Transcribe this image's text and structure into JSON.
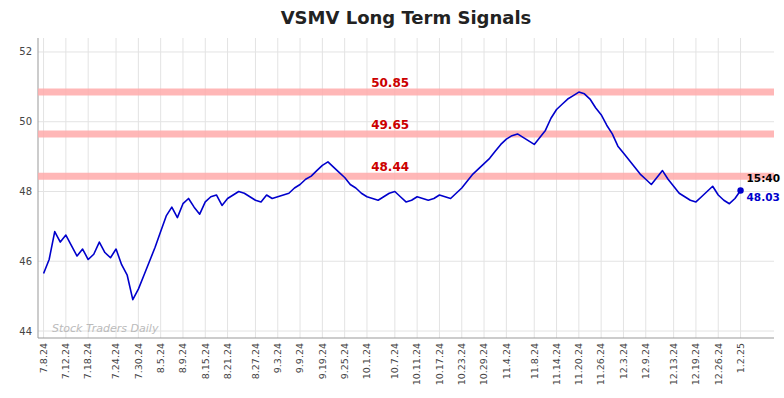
{
  "chart_data": {
    "type": "line",
    "title": "VSMV Long Term Signals",
    "categories": [
      "7.8.24",
      null,
      null,
      null,
      "7.12.24",
      null,
      null,
      null,
      "7.18.24",
      null,
      null,
      null,
      null,
      "7.24.24",
      null,
      null,
      null,
      "7.30.24",
      null,
      null,
      null,
      "8.5.24",
      null,
      null,
      null,
      "8.9.24",
      null,
      null,
      null,
      "8.15.24",
      null,
      null,
      null,
      "8.21.24",
      null,
      null,
      null,
      null,
      "8.27.24",
      null,
      null,
      null,
      "9.3.24",
      null,
      null,
      null,
      "9.9.24",
      null,
      null,
      null,
      "9.19.24",
      null,
      null,
      null,
      "9.25.24",
      null,
      null,
      null,
      "10.1.24",
      null,
      null,
      null,
      null,
      "10.7.24",
      null,
      null,
      null,
      "10.11.24",
      null,
      null,
      null,
      "10.17.24",
      null,
      null,
      null,
      "10.23.24",
      null,
      null,
      null,
      "10.29.24",
      null,
      null,
      null,
      "11.4.24",
      null,
      null,
      null,
      null,
      "11.8.24",
      null,
      null,
      null,
      "11.14.24",
      null,
      null,
      null,
      "11.20.24",
      null,
      null,
      null,
      "11.26.24",
      null,
      null,
      null,
      "12.3.24",
      null,
      null,
      null,
      "12.9.24",
      null,
      null,
      null,
      null,
      "12.13.24",
      null,
      null,
      null,
      "12.19.24",
      null,
      null,
      null,
      "12.26.24",
      null,
      null,
      null,
      "1.2.25"
    ],
    "series": [
      {
        "color": "#0000cc",
        "values": [
          45.65,
          46.05,
          46.85,
          46.55,
          46.75,
          46.45,
          46.15,
          46.35,
          46.05,
          46.2,
          46.55,
          46.25,
          46.1,
          46.35,
          45.9,
          45.6,
          44.9,
          45.2,
          45.6,
          46.0,
          46.4,
          46.85,
          47.3,
          47.55,
          47.25,
          47.65,
          47.8,
          47.55,
          47.35,
          47.7,
          47.85,
          47.9,
          47.6,
          47.8,
          47.9,
          48.0,
          47.95,
          47.85,
          47.75,
          47.7,
          47.9,
          47.8,
          47.85,
          47.9,
          47.95,
          48.1,
          48.2,
          48.35,
          48.44,
          48.6,
          48.75,
          48.85,
          48.7,
          48.55,
          48.4,
          48.2,
          48.1,
          47.95,
          47.85,
          47.8,
          47.75,
          47.85,
          47.95,
          48.0,
          47.85,
          47.7,
          47.75,
          47.85,
          47.8,
          47.75,
          47.8,
          47.9,
          47.85,
          47.8,
          47.95,
          48.1,
          48.3,
          48.5,
          48.65,
          48.8,
          48.95,
          49.15,
          49.35,
          49.5,
          49.6,
          49.65,
          49.55,
          49.45,
          49.35,
          49.55,
          49.75,
          50.1,
          50.35,
          50.5,
          50.65,
          50.75,
          50.85,
          50.8,
          50.65,
          50.4,
          50.2,
          49.9,
          49.65,
          49.3,
          49.1,
          48.9,
          48.7,
          48.5,
          48.35,
          48.2,
          48.4,
          48.6,
          48.35,
          48.15,
          47.95,
          47.85,
          47.75,
          47.7,
          47.85,
          48.0,
          48.15,
          47.9,
          47.75,
          47.65,
          47.8,
          48.03
        ]
      }
    ],
    "hlines": {
      "values": [
        50.85,
        49.65,
        48.44
      ],
      "color": "#ffaaaa",
      "label_color": "#cc0000"
    },
    "end_point": {
      "value": 48.03,
      "label": "15:40",
      "color": "#0000cc"
    },
    "annotations": [
      {
        "text": "Stock Traders Daily"
      }
    ],
    "ylim": [
      43.8,
      52.4
    ],
    "yticks": [
      44,
      46,
      48,
      50,
      52
    ],
    "grid": true
  }
}
